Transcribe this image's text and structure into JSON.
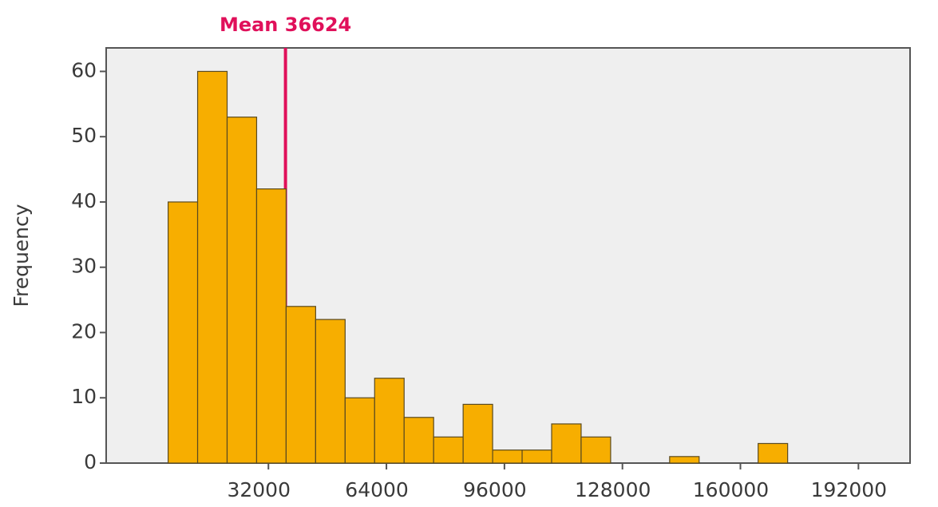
{
  "chart_data": {
    "type": "histogram",
    "y_label": "Frequency",
    "bins": [
      4800,
      12800,
      20800,
      28800,
      36800,
      44800,
      52800,
      60800,
      68800,
      76800,
      84800,
      92800,
      100800,
      108800,
      116800,
      124800,
      132800,
      140800,
      148800,
      156800,
      164800,
      172800,
      180800,
      188800,
      196800
    ],
    "values": [
      40,
      60,
      53,
      42,
      24,
      22,
      10,
      13,
      7,
      4,
      9,
      2,
      2,
      6,
      4,
      0,
      0,
      1,
      0,
      0,
      3,
      0,
      0,
      0
    ],
    "color": "#f7ae00",
    "xlim": [
      -12000,
      206000
    ],
    "xticks": [
      32000,
      64000,
      96000,
      128000,
      160000,
      192000
    ],
    "ylim": [
      0,
      63.6
    ],
    "yticks": [
      0,
      10,
      20,
      30,
      40,
      50,
      60
    ],
    "annotation": {
      "text": "Mean 36624",
      "value": 36624,
      "color": "#e0105a"
    }
  }
}
